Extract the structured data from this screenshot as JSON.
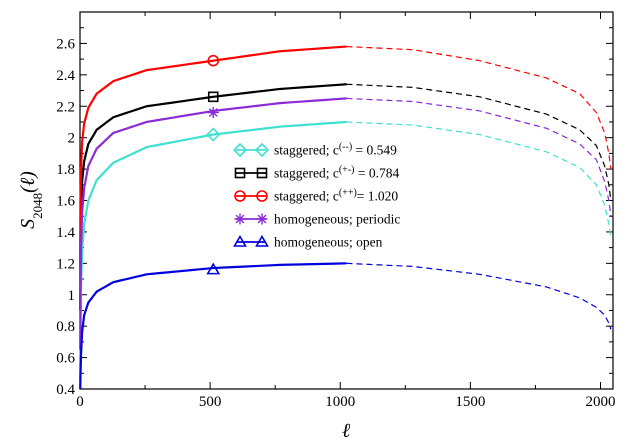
{
  "chart_data": {
    "type": "line",
    "title": "",
    "ylabel_html": "S<tspan baseline-shift='sub' font-size='13' font-style='normal'>2048</tspan>(ℓ)",
    "ylabel_base": "S",
    "ylabel_sub": "2048",
    "ylabel_arg": "(ℓ)",
    "xlabel": "ℓ",
    "xlim": [
      0,
      2048
    ],
    "ylim": [
      0.4,
      2.8
    ],
    "xticks": [
      0,
      500,
      1000,
      1500,
      2000
    ],
    "yticks": [
      0.4,
      0.6,
      0.8,
      1.0,
      1.2,
      1.4,
      1.6,
      1.8,
      2.0,
      2.2,
      2.4,
      2.6
    ],
    "ytick_labels": [
      "0.4",
      "0.6",
      "0.8",
      "1",
      "1.2",
      "1.4",
      "1.6",
      "1.8",
      "2",
      "2.2",
      "2.4",
      "2.6"
    ],
    "xtick_labels": [
      "0",
      "500",
      "1000",
      "1500",
      "2000"
    ],
    "grid": false,
    "legend_position": "center",
    "series": [
      {
        "name": "staggered; c(--) = 0.549",
        "legend_prefix": "staggered; c",
        "legend_sup": "(--)",
        "legend_suffix": " = 0.549",
        "color": "#40E0D0",
        "marker": "diamond",
        "marker_point": [
          512,
          2.02
        ],
        "x": [
          1,
          2,
          4,
          8,
          16,
          32,
          64,
          128,
          256,
          512,
          768,
          1024
        ],
        "y": [
          0.45,
          0.75,
          1.05,
          1.28,
          1.45,
          1.6,
          1.73,
          1.84,
          1.94,
          2.02,
          2.07,
          2.1
        ],
        "dashed_x": [
          1024,
          1280,
          1536,
          1792,
          1920,
          1984,
          2016,
          2032,
          2040
        ],
        "dashed_y": [
          2.1,
          2.08,
          2.02,
          1.91,
          1.81,
          1.7,
          1.57,
          1.45,
          1.36
        ]
      },
      {
        "name": "staggered; c(+-) = 0.784",
        "legend_prefix": "staggered; c",
        "legend_sup": "(+-)",
        "legend_suffix": " = 0.784",
        "color": "#000000",
        "marker": "square",
        "marker_point": [
          512,
          2.26
        ],
        "x": [
          1,
          2,
          4,
          8,
          16,
          32,
          64,
          128,
          256,
          512,
          768,
          1024
        ],
        "y": [
          0.9,
          1.3,
          1.55,
          1.72,
          1.85,
          1.96,
          2.05,
          2.13,
          2.2,
          2.26,
          2.31,
          2.34
        ],
        "dashed_x": [
          1024,
          1280,
          1536,
          1792,
          1920,
          1984,
          2016,
          2032,
          2040
        ],
        "dashed_y": [
          2.34,
          2.32,
          2.26,
          2.15,
          2.05,
          1.95,
          1.82,
          1.7,
          1.6
        ]
      },
      {
        "name": "staggered; c(++) = 1.020",
        "legend_prefix": "staggered; c",
        "legend_sup": "(++)",
        "legend_suffix": "= 1.020",
        "color": "#ff0000",
        "marker": "circle",
        "marker_point": [
          512,
          2.49
        ],
        "x": [
          1,
          2,
          4,
          8,
          16,
          32,
          64,
          128,
          256,
          512,
          768,
          1024
        ],
        "y": [
          1.3,
          1.6,
          1.8,
          1.97,
          2.09,
          2.19,
          2.28,
          2.36,
          2.43,
          2.49,
          2.55,
          2.58
        ],
        "dashed_x": [
          1024,
          1280,
          1536,
          1792,
          1920,
          1984,
          2016,
          2032,
          2040
        ],
        "dashed_y": [
          2.58,
          2.56,
          2.49,
          2.38,
          2.28,
          2.16,
          2.03,
          1.9,
          1.8
        ]
      },
      {
        "name": "homogeneous; periodic",
        "legend_prefix": "homogeneous; periodic",
        "legend_sup": "",
        "legend_suffix": "",
        "color": "#8B2BD6",
        "marker": "star",
        "marker_point": [
          512,
          2.16
        ],
        "x": [
          1,
          2,
          4,
          8,
          16,
          32,
          64,
          128,
          256,
          512,
          768,
          1024
        ],
        "y": [
          0.65,
          1.0,
          1.3,
          1.52,
          1.68,
          1.82,
          1.93,
          2.03,
          2.1,
          2.17,
          2.22,
          2.25
        ],
        "dashed_x": [
          1024,
          1280,
          1536,
          1792,
          1920,
          1984,
          2016,
          2032,
          2040
        ],
        "dashed_y": [
          2.25,
          2.23,
          2.17,
          2.06,
          1.96,
          1.86,
          1.72,
          1.6,
          1.5
        ]
      },
      {
        "name": "homogeneous; open",
        "legend_prefix": "homogeneous; open",
        "legend_sup": "",
        "legend_suffix": "",
        "color": "#0000dd",
        "marker": "triangle",
        "marker_point": [
          512,
          1.16
        ],
        "x": [
          1,
          2,
          4,
          8,
          16,
          32,
          64,
          128,
          256,
          512,
          768,
          1024
        ],
        "y": [
          0.4,
          0.5,
          0.62,
          0.76,
          0.87,
          0.95,
          1.02,
          1.08,
          1.13,
          1.17,
          1.19,
          1.2
        ],
        "dashed_x": [
          1024,
          1280,
          1536,
          1792,
          1920,
          1984,
          2016,
          2032,
          2040
        ],
        "dashed_y": [
          1.2,
          1.18,
          1.13,
          1.05,
          0.98,
          0.92,
          0.87,
          0.82,
          0.78
        ]
      }
    ]
  }
}
